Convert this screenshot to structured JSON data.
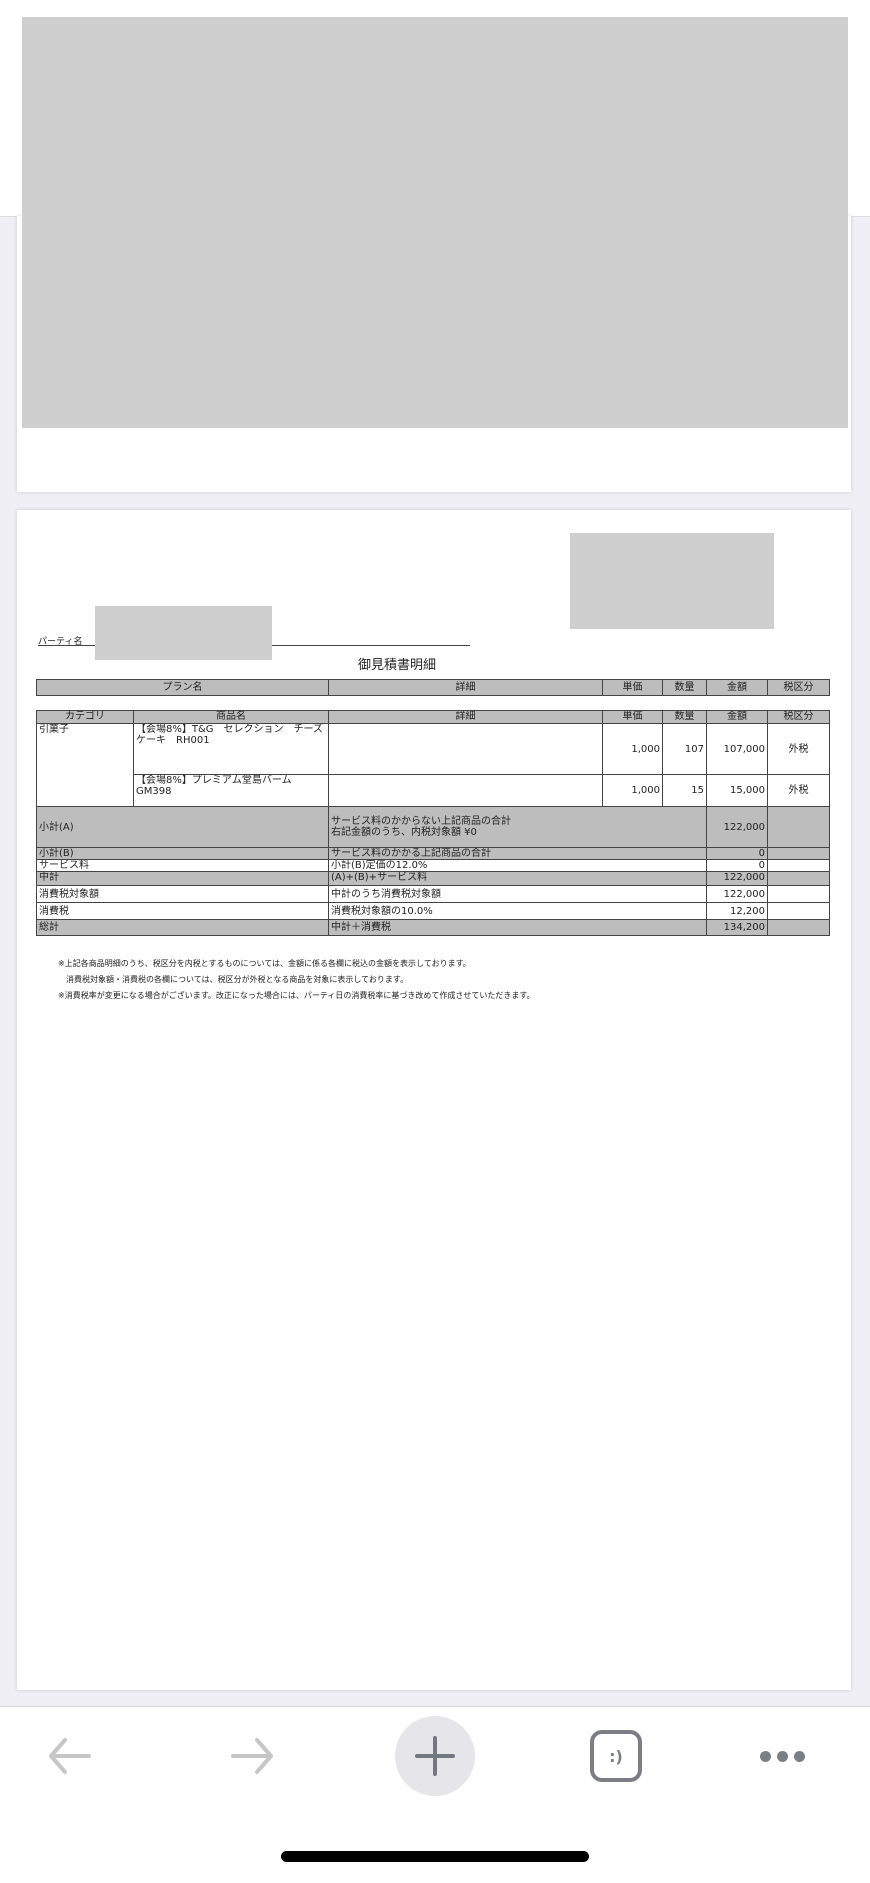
{
  "document": {
    "party_label": "パーティ名",
    "title": "御見積書明細",
    "plan_header": [
      "プラン名",
      "詳細",
      "単価",
      "数量",
      "金額",
      "税区分"
    ],
    "items_header": [
      "カテゴリ",
      "商品名",
      "詳細",
      "単価",
      "数量",
      "金額",
      "税区分"
    ],
    "items": [
      {
        "category": "引菓子",
        "name": "【会場8%】T&G　セレクション　チーズケーキ　RH001",
        "detail": "",
        "unit_price": "1,000",
        "qty": "107",
        "amount": "107,000",
        "tax": "外税"
      },
      {
        "category": "",
        "name": "【会場8%】プレミアム堂島バーム　GM398",
        "detail": "",
        "unit_price": "1,000",
        "qty": "15",
        "amount": "15,000",
        "tax": "外税"
      }
    ],
    "summary": [
      {
        "label": "小計(A)",
        "detail": "サービス料のかからない上記商品の合計",
        "detail2": "右記金額のうち、内税対象額 ¥0",
        "amount": "122,000"
      },
      {
        "label": "小計(B)",
        "detail": "サービス料のかかる上記商品の合計",
        "amount": "0"
      },
      {
        "label": "サービス料",
        "detail": "小計(B)定価の12.0%",
        "amount": "0"
      },
      {
        "label": "中計",
        "detail": "(A)+(B)+サービス料",
        "amount": "122,000"
      },
      {
        "label": "消費税対象額",
        "detail": "中計のうち消費税対象額",
        "amount": "122,000"
      },
      {
        "label": "消費税",
        "detail": "消費税対象額の10.0%",
        "amount": "12,200"
      },
      {
        "label": "総計",
        "detail": "中計＋消費税",
        "amount": "134,200"
      }
    ],
    "notes": [
      "※上記各商品明細のうち、税区分を内税とするものについては、金額に係る各欄に税込の金額を表示しております。",
      "　消費税対象額・消費税の各欄については、税区分が外税となる商品を対象に表示しております。",
      "※消費税率が変更になる場合がございます。改正になった場合には、パーティ日の消費税率に基づき改めて作成させていただきます。"
    ]
  },
  "toolbar": {
    "tabs_icon_text": ":)",
    "icons": [
      "back-arrow-icon",
      "forward-arrow-icon",
      "plus-icon",
      "tabs-icon",
      "more-icon"
    ]
  },
  "colors": {
    "header_gray": "#bdbdbd",
    "redaction": "#cfcfcf",
    "page_bg": "#f0eff5"
  }
}
